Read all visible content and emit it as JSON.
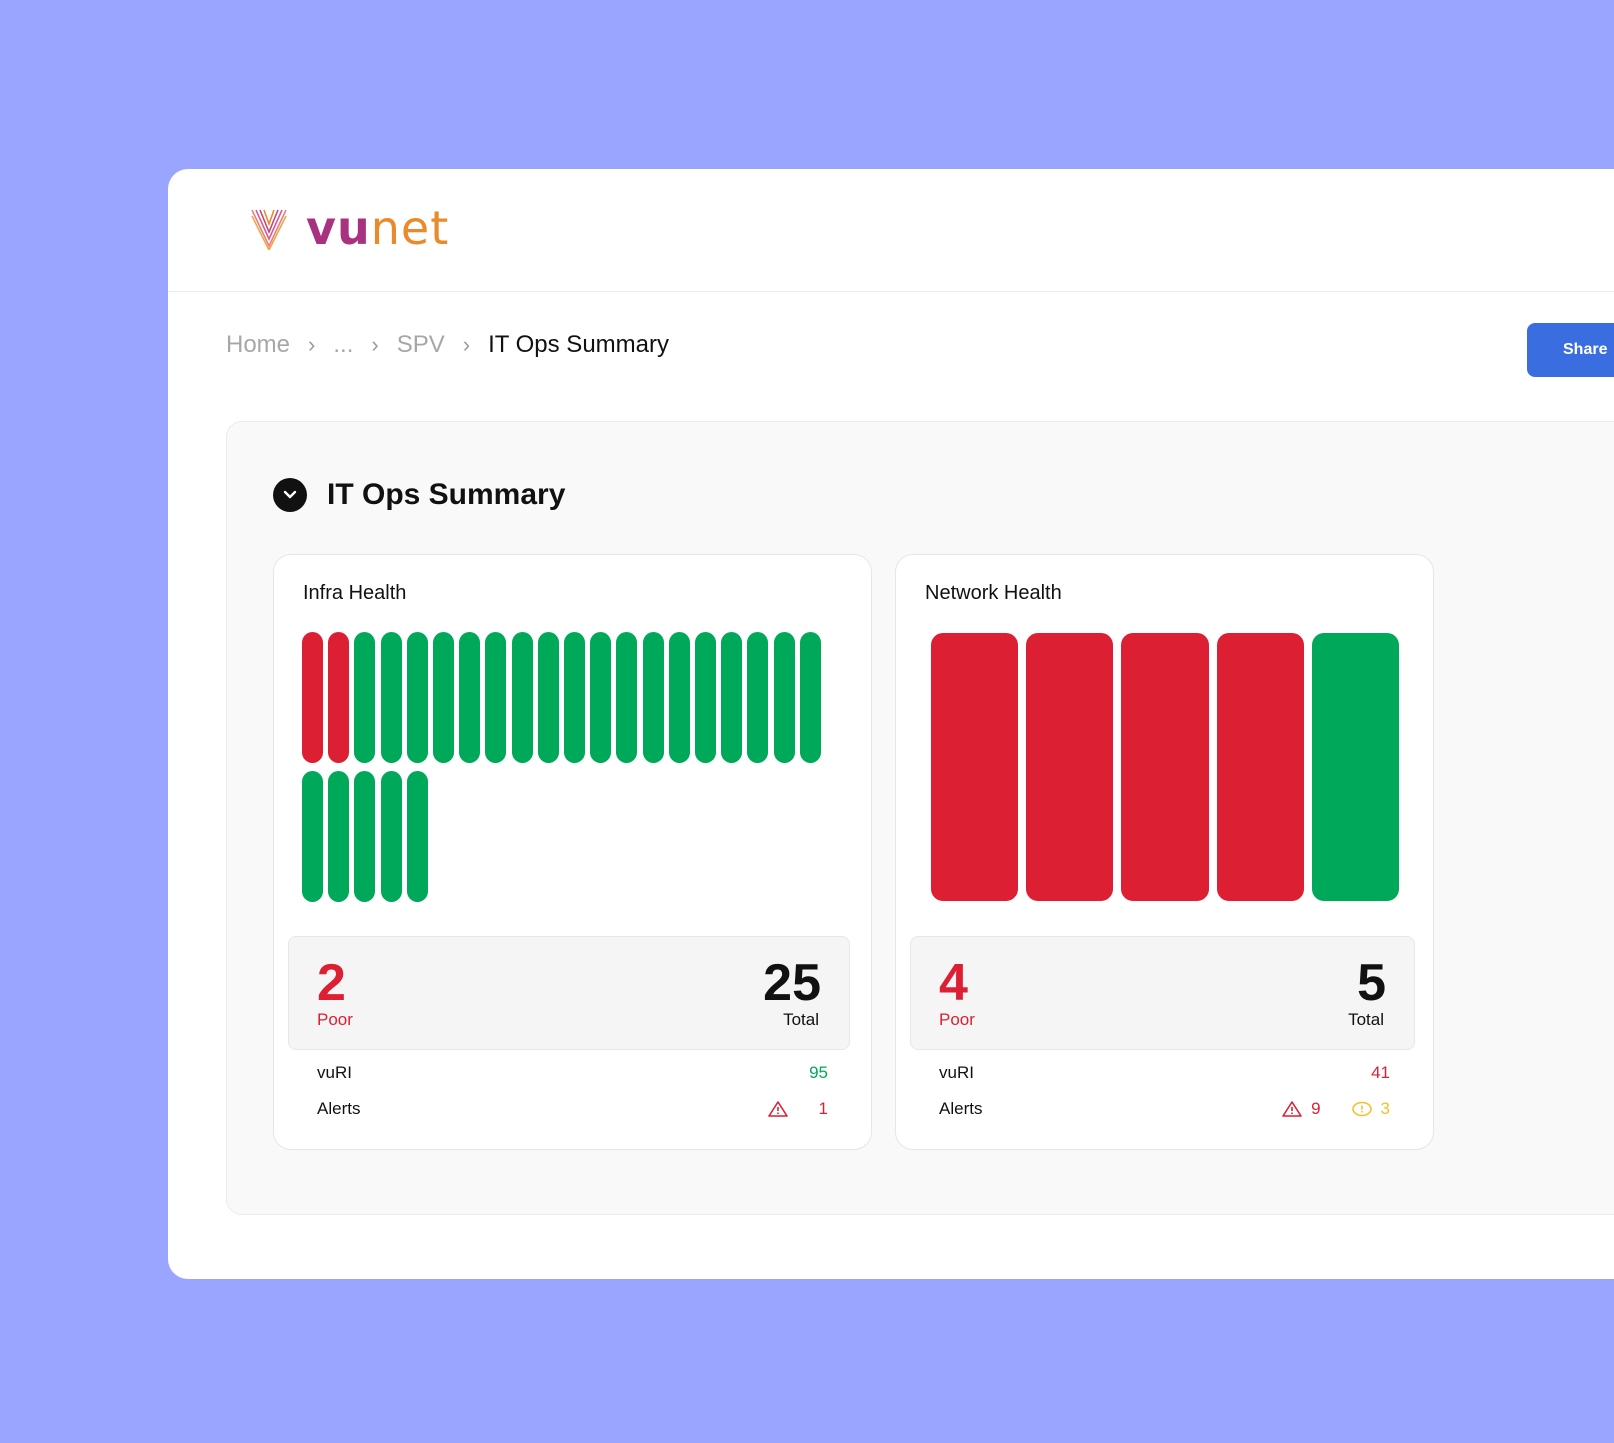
{
  "brand": {
    "name_part1": "vu",
    "name_part2": "net"
  },
  "breadcrumb": {
    "home": "Home",
    "ellipsis": "...",
    "spv": "SPV",
    "current": "IT Ops Summary"
  },
  "share_label": "Share",
  "section": {
    "title": "IT Ops Summary"
  },
  "infra": {
    "title": "Infra Health",
    "tiles": [
      "poor",
      "poor",
      "good",
      "good",
      "good",
      "good",
      "good",
      "good",
      "good",
      "good",
      "good",
      "good",
      "good",
      "good",
      "good",
      "good",
      "good",
      "good",
      "good",
      "good",
      "good",
      "good",
      "good",
      "good",
      "good"
    ],
    "poor_count": "2",
    "poor_label": "Poor",
    "total_count": "25",
    "total_label": "Total",
    "vuri_label": "vuRI",
    "vuri_value": "95",
    "alerts_label": "Alerts",
    "alerts_critical": "1"
  },
  "network": {
    "title": "Network Health",
    "tiles": [
      "poor",
      "poor",
      "poor",
      "poor",
      "good"
    ],
    "poor_count": "4",
    "poor_label": "Poor",
    "total_count": "5",
    "total_label": "Total",
    "vuri_label": "vuRI",
    "vuri_value": "41",
    "alerts_label": "Alerts",
    "alerts_critical": "9",
    "alerts_warning": "3"
  },
  "colors": {
    "poor": "#dc1f33",
    "good": "#00a85a",
    "accent": "#3a6ee0",
    "warning": "#f2c12e"
  },
  "icons": {
    "collapse": "chevron-down-icon",
    "critical": "warning-triangle-icon",
    "warning": "warning-octagon-icon"
  }
}
